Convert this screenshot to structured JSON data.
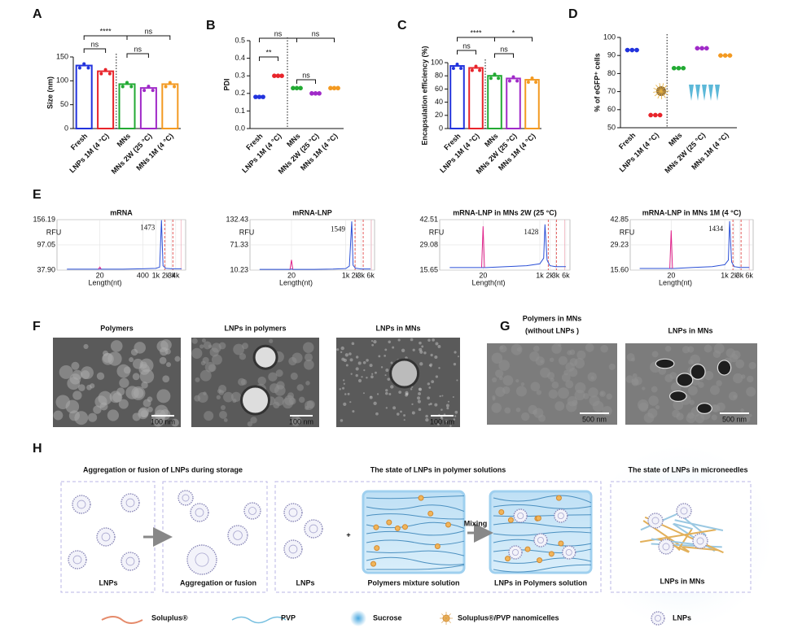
{
  "panel_labels": [
    "A",
    "B",
    "C",
    "D",
    "E",
    "F",
    "G",
    "H"
  ],
  "chart_data": [
    {
      "type": "bar",
      "ylabel": "Size (nm)",
      "categories": [
        "Fresh",
        "LNPs 1M (4 °C)",
        "MNs",
        "MNs 2W (25 °C)",
        "MNs 1M (4 °C)"
      ],
      "values": [
        132,
        120,
        93,
        85,
        93
      ],
      "colors": [
        "#2233dd",
        "#e8242b",
        "#22aa33",
        "#a02ac8",
        "#f39a22"
      ],
      "ylim": [
        0,
        150
      ],
      "yticks": [
        0,
        50,
        100,
        150
      ],
      "annotations": [
        "****",
        "ns",
        "ns",
        "ns"
      ]
    },
    {
      "type": "dot",
      "ylabel": "PDI",
      "categories": [
        "Fresh",
        "LNPs 1M (4 °C)",
        "MNs",
        "MNs 2W (25 °C)",
        "MNs 1M (4 °C)"
      ],
      "values": [
        0.18,
        0.3,
        0.23,
        0.2,
        0.23
      ],
      "colors": [
        "#2233dd",
        "#e8242b",
        "#22aa33",
        "#a02ac8",
        "#f39a22"
      ],
      "ylim": [
        0,
        0.5
      ],
      "yticks": [
        {
          "value": 0,
          "label": "0.0"
        },
        0.1,
        0.2,
        0.3,
        0.4,
        0.5
      ],
      "annotations": [
        "ns",
        "ns",
        "**",
        "ns"
      ]
    },
    {
      "type": "bar",
      "ylabel": "Encapsulation efficiency (%)",
      "categories": [
        "Fresh",
        "LNPs 1M (4 °C)",
        "MNs",
        "MNs 2W (25 °C)",
        "MNs 1M (4 °C)"
      ],
      "values": [
        95,
        92,
        80,
        76,
        74
      ],
      "colors": [
        "#2233dd",
        "#e8242b",
        "#22aa33",
        "#a02ac8",
        "#f39a22"
      ],
      "ylim": [
        0,
        100
      ],
      "yticks": [
        0,
        20,
        40,
        60,
        80,
        100
      ],
      "annotations": [
        "****",
        "*",
        "ns",
        "ns"
      ]
    },
    {
      "type": "dot",
      "ylabel": "% of eGFP⁺ cells",
      "categories": [
        "Fresh",
        "LNPs 1M (4 °C)",
        "MNs",
        "MNs 2W (25 °C)",
        "MNs 1M (4 °C)"
      ],
      "values": [
        93,
        57,
        83,
        94,
        90
      ],
      "colors": [
        "#2233dd",
        "#e8242b",
        "#22aa33",
        "#a02ac8",
        "#f39a22"
      ],
      "ylim": [
        50,
        100
      ],
      "yticks": [
        50,
        60,
        70,
        80,
        90,
        100
      ]
    },
    {
      "type": "line",
      "title": "mRNA",
      "xlabel": "Length(nt)",
      "ylabel": "RFU",
      "xscale": "log",
      "xlim": [
        1,
        8000
      ],
      "xticks": [
        20,
        400,
        {
          "value": 1000,
          "label": "1k"
        },
        {
          "value": 2000,
          "label": "2k"
        },
        {
          "value": 3000,
          "label": "3k"
        },
        {
          "value": 4000,
          "label": "4k"
        }
      ],
      "ylim": [
        37.9,
        156.19
      ],
      "yticks": [
        {
          "value": 37.9,
          "label": "37.90"
        },
        97.05,
        156.19
      ],
      "x": [
        2,
        18,
        20,
        22,
        25,
        100,
        400,
        1000,
        1300,
        1473,
        1650,
        2000,
        3000,
        6000
      ],
      "series": [
        {
          "color": "#2a4fd6",
          "values": [
            40,
            40,
            40.5,
            40,
            40,
            40,
            41,
            42,
            45,
            155,
            48,
            42,
            41,
            41
          ]
        },
        {
          "color": "#e0228a",
          "values": [
            null,
            40,
            45,
            40,
            null,
            null,
            null,
            null,
            null,
            null,
            null,
            null,
            null,
            null
          ]
        }
      ]
    },
    {
      "type": "line",
      "title": "mRNA-LNP",
      "xlabel": "Length(nt)",
      "ylabel": "RFU",
      "xscale": "log",
      "xlim": [
        1,
        8000
      ],
      "xticks": [
        20,
        {
          "value": 1000,
          "label": "1k"
        },
        {
          "value": 2000,
          "label": "2k"
        },
        {
          "value": 3000,
          "label": "3k"
        },
        {
          "value": 6000,
          "label": "6k"
        }
      ],
      "ylim": [
        10.23,
        132.43
      ],
      "yticks": [
        10.23,
        71.33,
        132.43
      ],
      "x": [
        2,
        18,
        20,
        22,
        25,
        100,
        400,
        1000,
        1300,
        1549,
        1700,
        2000,
        3000,
        6000
      ],
      "series": [
        {
          "color": "#2a4fd6",
          "values": [
            12,
            12,
            13,
            12,
            12,
            12,
            12.5,
            14,
            20,
            128,
            22,
            15,
            13,
            13
          ]
        },
        {
          "color": "#e0228a",
          "values": [
            null,
            12,
            35,
            12,
            null,
            null,
            null,
            null,
            null,
            null,
            null,
            null,
            null,
            null
          ]
        }
      ]
    },
    {
      "type": "line",
      "title": "mRNA-LNP in MNs 2W (25 °C)",
      "xlabel": "Length(nt)",
      "ylabel": "RFU",
      "xscale": "log",
      "xlim": [
        1,
        8000
      ],
      "xticks": [
        20,
        {
          "value": 1000,
          "label": "1k"
        },
        {
          "value": 2000,
          "label": "2k"
        },
        {
          "value": 3000,
          "label": "3k"
        },
        {
          "value": 6000,
          "label": "6k"
        }
      ],
      "ylim": [
        15.65,
        42.51
      ],
      "yticks": [
        15.65,
        29.08,
        42.51
      ],
      "x": [
        2,
        18,
        20,
        22,
        25,
        100,
        400,
        1000,
        1300,
        1428,
        1650,
        2000,
        3000,
        6000
      ],
      "series": [
        {
          "color": "#2a4fd6",
          "values": [
            17,
            17,
            17,
            17,
            17,
            17.5,
            18,
            19,
            22,
            40,
            21,
            18,
            17.5,
            17.5
          ]
        },
        {
          "color": "#e0228a",
          "values": [
            null,
            17,
            39,
            17,
            null,
            null,
            null,
            null,
            null,
            null,
            null,
            null,
            null,
            null
          ]
        }
      ]
    },
    {
      "type": "line",
      "title": "mRNA-LNP in MNs 1M (4 °C)",
      "xlabel": "Length(nt)",
      "ylabel": "RFU",
      "xscale": "log",
      "xlim": [
        1,
        8000
      ],
      "xticks": [
        20,
        {
          "value": 1000,
          "label": "1k"
        },
        {
          "value": 2000,
          "label": "2k"
        },
        {
          "value": 3000,
          "label": "3k"
        },
        {
          "value": 6000,
          "label": "6k"
        }
      ],
      "ylim": [
        15.6,
        42.85
      ],
      "yticks": [
        {
          "value": 15.6,
          "label": "15.60"
        },
        29.23,
        42.85
      ],
      "x": [
        2,
        18,
        20,
        22,
        25,
        100,
        400,
        1000,
        1300,
        1434,
        1650,
        2000,
        3000,
        6000
      ],
      "series": [
        {
          "color": "#2a4fd6",
          "values": [
            16.5,
            16.5,
            16.5,
            16.5,
            16.5,
            17,
            17.5,
            18.5,
            21,
            42,
            20,
            17.5,
            17,
            17
          ]
        },
        {
          "color": "#e0228a",
          "values": [
            null,
            16.5,
            37,
            16.5,
            null,
            null,
            null,
            null,
            null,
            null,
            null,
            null,
            null,
            null
          ]
        }
      ]
    }
  ],
  "micrographs": {
    "F": {
      "captions": [
        "Polymers",
        "LNPs in polymers",
        "LNPs in MNs"
      ],
      "scale_bars": [
        "100 nm",
        "100 nm",
        "100 nm"
      ]
    },
    "G": {
      "captions": [
        "Polymers in MNs",
        "(without LNPs )",
        "LNPs in MNs"
      ],
      "scale_bars": [
        "500 nm",
        "500 nm"
      ]
    }
  },
  "schematic": {
    "sections": [
      "Aggregation or fusion of LNPs during storage",
      "The state of LNPs in polymer solutions",
      "The state of LNPs in microneedles"
    ],
    "captions": [
      "LNPs",
      "Aggregation or fusion",
      "LNPs",
      "Polymers mixture solution",
      "LNPs in Polymers solution",
      "LNPs in MNs"
    ],
    "arrow_label": "Mixing",
    "legend": [
      "Soluplus®",
      "PVP",
      "Sucrose",
      "Soluplus®/PVP nanomicelles",
      "LNPs"
    ]
  }
}
